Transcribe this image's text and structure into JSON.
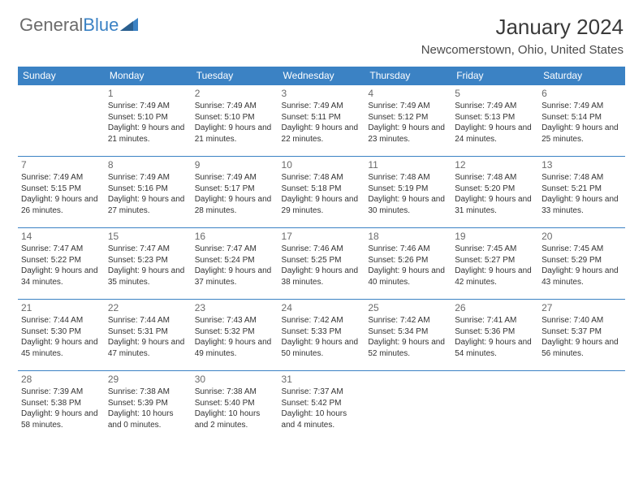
{
  "logo": {
    "text1": "General",
    "text2": "Blue"
  },
  "title": "January 2024",
  "location": "Newcomerstown, Ohio, United States",
  "dayHeaders": [
    "Sunday",
    "Monday",
    "Tuesday",
    "Wednesday",
    "Thursday",
    "Friday",
    "Saturday"
  ],
  "header_bg": "#3b82c4",
  "header_fg": "#ffffff",
  "border_color": "#3b82c4",
  "text_color": "#333333",
  "daynum_color": "#6a6a6a",
  "font_family": "Arial, Helvetica, sans-serif",
  "cell_font_size": 10,
  "daynum_font_size": 12,
  "title_font_size": 26,
  "location_font_size": 15,
  "weeks": [
    [
      null,
      {
        "n": "1",
        "sr": "7:49 AM",
        "ss": "5:10 PM",
        "d": "9 hours and 21 minutes."
      },
      {
        "n": "2",
        "sr": "7:49 AM",
        "ss": "5:10 PM",
        "d": "9 hours and 21 minutes."
      },
      {
        "n": "3",
        "sr": "7:49 AM",
        "ss": "5:11 PM",
        "d": "9 hours and 22 minutes."
      },
      {
        "n": "4",
        "sr": "7:49 AM",
        "ss": "5:12 PM",
        "d": "9 hours and 23 minutes."
      },
      {
        "n": "5",
        "sr": "7:49 AM",
        "ss": "5:13 PM",
        "d": "9 hours and 24 minutes."
      },
      {
        "n": "6",
        "sr": "7:49 AM",
        "ss": "5:14 PM",
        "d": "9 hours and 25 minutes."
      }
    ],
    [
      {
        "n": "7",
        "sr": "7:49 AM",
        "ss": "5:15 PM",
        "d": "9 hours and 26 minutes."
      },
      {
        "n": "8",
        "sr": "7:49 AM",
        "ss": "5:16 PM",
        "d": "9 hours and 27 minutes."
      },
      {
        "n": "9",
        "sr": "7:49 AM",
        "ss": "5:17 PM",
        "d": "9 hours and 28 minutes."
      },
      {
        "n": "10",
        "sr": "7:48 AM",
        "ss": "5:18 PM",
        "d": "9 hours and 29 minutes."
      },
      {
        "n": "11",
        "sr": "7:48 AM",
        "ss": "5:19 PM",
        "d": "9 hours and 30 minutes."
      },
      {
        "n": "12",
        "sr": "7:48 AM",
        "ss": "5:20 PM",
        "d": "9 hours and 31 minutes."
      },
      {
        "n": "13",
        "sr": "7:48 AM",
        "ss": "5:21 PM",
        "d": "9 hours and 33 minutes."
      }
    ],
    [
      {
        "n": "14",
        "sr": "7:47 AM",
        "ss": "5:22 PM",
        "d": "9 hours and 34 minutes."
      },
      {
        "n": "15",
        "sr": "7:47 AM",
        "ss": "5:23 PM",
        "d": "9 hours and 35 minutes."
      },
      {
        "n": "16",
        "sr": "7:47 AM",
        "ss": "5:24 PM",
        "d": "9 hours and 37 minutes."
      },
      {
        "n": "17",
        "sr": "7:46 AM",
        "ss": "5:25 PM",
        "d": "9 hours and 38 minutes."
      },
      {
        "n": "18",
        "sr": "7:46 AM",
        "ss": "5:26 PM",
        "d": "9 hours and 40 minutes."
      },
      {
        "n": "19",
        "sr": "7:45 AM",
        "ss": "5:27 PM",
        "d": "9 hours and 42 minutes."
      },
      {
        "n": "20",
        "sr": "7:45 AM",
        "ss": "5:29 PM",
        "d": "9 hours and 43 minutes."
      }
    ],
    [
      {
        "n": "21",
        "sr": "7:44 AM",
        "ss": "5:30 PM",
        "d": "9 hours and 45 minutes."
      },
      {
        "n": "22",
        "sr": "7:44 AM",
        "ss": "5:31 PM",
        "d": "9 hours and 47 minutes."
      },
      {
        "n": "23",
        "sr": "7:43 AM",
        "ss": "5:32 PM",
        "d": "9 hours and 49 minutes."
      },
      {
        "n": "24",
        "sr": "7:42 AM",
        "ss": "5:33 PM",
        "d": "9 hours and 50 minutes."
      },
      {
        "n": "25",
        "sr": "7:42 AM",
        "ss": "5:34 PM",
        "d": "9 hours and 52 minutes."
      },
      {
        "n": "26",
        "sr": "7:41 AM",
        "ss": "5:36 PM",
        "d": "9 hours and 54 minutes."
      },
      {
        "n": "27",
        "sr": "7:40 AM",
        "ss": "5:37 PM",
        "d": "9 hours and 56 minutes."
      }
    ],
    [
      {
        "n": "28",
        "sr": "7:39 AM",
        "ss": "5:38 PM",
        "d": "9 hours and 58 minutes."
      },
      {
        "n": "29",
        "sr": "7:38 AM",
        "ss": "5:39 PM",
        "d": "10 hours and 0 minutes."
      },
      {
        "n": "30",
        "sr": "7:38 AM",
        "ss": "5:40 PM",
        "d": "10 hours and 2 minutes."
      },
      {
        "n": "31",
        "sr": "7:37 AM",
        "ss": "5:42 PM",
        "d": "10 hours and 4 minutes."
      },
      null,
      null,
      null
    ]
  ],
  "labels": {
    "sunrise": "Sunrise:",
    "sunset": "Sunset:",
    "daylight": "Daylight:"
  }
}
